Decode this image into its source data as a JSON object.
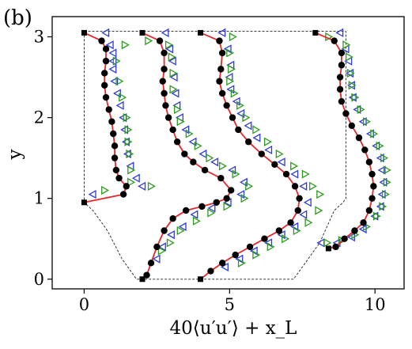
{
  "chart_data": {
    "type": "scatter",
    "panel_label": "(b)",
    "xlabel": "40⟨u′u′⟩ + x_L",
    "ylabel": "y",
    "xlim": [
      -1.1,
      11.0
    ],
    "ylim": [
      -0.12,
      3.25
    ],
    "x_ticks": [
      0,
      5,
      10
    ],
    "y_ticks": [
      0,
      1,
      2,
      3
    ],
    "grid": false,
    "colors": {
      "line": "#e8262a",
      "dots": "#000000",
      "triangle_left": "#2d3bdc",
      "triangle_right": "#2c9b1e",
      "boundary": "#222222"
    },
    "markers": [
      "black-dot",
      "blue-left-triangle",
      "green-right-triangle",
      "black-square"
    ],
    "series": [
      {
        "x_offset": 0,
        "profile": [
          [
            0,
            3.05
          ],
          [
            0.6,
            2.95
          ],
          [
            0.75,
            2.85
          ],
          [
            0.75,
            2.7
          ],
          [
            0.7,
            2.55
          ],
          [
            0.7,
            2.4
          ],
          [
            0.75,
            2.25
          ],
          [
            0.85,
            2.1
          ],
          [
            0.95,
            1.95
          ],
          [
            1.0,
            1.8
          ],
          [
            1.05,
            1.65
          ],
          [
            1.05,
            1.5
          ],
          [
            1.1,
            1.35
          ],
          [
            1.2,
            1.25
          ],
          [
            1.45,
            1.15
          ],
          [
            1.35,
            1.05
          ],
          [
            0,
            0.95
          ]
        ],
        "blue": [
          [
            0.75,
            3.05
          ],
          [
            0.9,
            2.9
          ],
          [
            1.0,
            2.8
          ],
          [
            1.0,
            2.7
          ],
          [
            1.0,
            2.6
          ],
          [
            1.05,
            2.45
          ],
          [
            1.15,
            2.3
          ],
          [
            1.25,
            2.15
          ],
          [
            1.35,
            2.0
          ],
          [
            1.4,
            1.85
          ],
          [
            1.45,
            1.7
          ],
          [
            1.5,
            1.55
          ],
          [
            1.6,
            1.4
          ],
          [
            1.8,
            1.25
          ],
          [
            2.0,
            1.15
          ],
          [
            0.3,
            1.05
          ]
        ],
        "green": [
          [
            1.4,
            2.9
          ],
          [
            1.1,
            2.7
          ],
          [
            1.2,
            2.45
          ],
          [
            1.3,
            2.25
          ],
          [
            1.45,
            2.0
          ],
          [
            1.5,
            1.85
          ],
          [
            1.5,
            1.7
          ],
          [
            1.55,
            1.55
          ],
          [
            1.6,
            1.35
          ],
          [
            1.6,
            1.2
          ],
          [
            2.3,
            1.15
          ],
          [
            0.7,
            1.1
          ]
        ]
      },
      {
        "x_offset": 2,
        "profile": [
          [
            2,
            3.05
          ],
          [
            2.6,
            2.95
          ],
          [
            2.75,
            2.8
          ],
          [
            2.75,
            2.6
          ],
          [
            2.7,
            2.45
          ],
          [
            2.75,
            2.3
          ],
          [
            2.8,
            2.15
          ],
          [
            2.9,
            2.0
          ],
          [
            3.05,
            1.85
          ],
          [
            3.2,
            1.7
          ],
          [
            3.45,
            1.55
          ],
          [
            3.75,
            1.45
          ],
          [
            4.15,
            1.35
          ],
          [
            4.7,
            1.25
          ],
          [
            5.05,
            1.1
          ],
          [
            4.9,
            1.0
          ],
          [
            4.55,
            0.95
          ],
          [
            4.05,
            0.9
          ],
          [
            3.5,
            0.85
          ],
          [
            3.05,
            0.75
          ],
          [
            2.75,
            0.6
          ],
          [
            2.5,
            0.4
          ],
          [
            2.3,
            0.2
          ],
          [
            2.15,
            0.05
          ],
          [
            2,
            0
          ]
        ],
        "blue": [
          [
            2.8,
            3.05
          ],
          [
            2.95,
            2.85
          ],
          [
            3.05,
            2.7
          ],
          [
            3.1,
            2.5
          ],
          [
            3.15,
            2.3
          ],
          [
            3.2,
            2.15
          ],
          [
            3.3,
            2.0
          ],
          [
            3.5,
            1.85
          ],
          [
            3.75,
            1.7
          ],
          [
            4.1,
            1.55
          ],
          [
            4.5,
            1.45
          ],
          [
            5.1,
            1.35
          ],
          [
            5.5,
            1.2
          ],
          [
            5.4,
            1.05
          ],
          [
            4.95,
            0.95
          ],
          [
            4.4,
            0.88
          ],
          [
            3.8,
            0.8
          ],
          [
            3.4,
            0.65
          ],
          [
            3.0,
            0.55
          ],
          [
            2.7,
            0.4
          ],
          [
            2.5,
            0.25
          ]
        ],
        "green": [
          [
            2.2,
            2.95
          ],
          [
            2.9,
            2.9
          ],
          [
            3.0,
            2.75
          ],
          [
            3.05,
            2.55
          ],
          [
            3.05,
            2.35
          ],
          [
            3.2,
            2.1
          ],
          [
            3.3,
            1.95
          ],
          [
            3.6,
            1.8
          ],
          [
            3.9,
            1.65
          ],
          [
            4.3,
            1.5
          ],
          [
            4.75,
            1.4
          ],
          [
            5.2,
            1.3
          ],
          [
            5.65,
            1.15
          ],
          [
            5.5,
            1.0
          ],
          [
            4.9,
            0.9
          ],
          [
            4.35,
            0.82
          ],
          [
            3.85,
            0.72
          ],
          [
            3.3,
            0.6
          ],
          [
            2.95,
            0.45
          ],
          [
            2.65,
            0.35
          ]
        ]
      },
      {
        "x_offset": 4,
        "profile": [
          [
            4,
            3.05
          ],
          [
            4.65,
            2.95
          ],
          [
            4.75,
            2.8
          ],
          [
            4.7,
            2.6
          ],
          [
            4.65,
            2.45
          ],
          [
            4.75,
            2.3
          ],
          [
            4.9,
            2.15
          ],
          [
            5.1,
            2.0
          ],
          [
            5.3,
            1.85
          ],
          [
            5.65,
            1.7
          ],
          [
            6.1,
            1.55
          ],
          [
            6.55,
            1.42
          ],
          [
            6.95,
            1.3
          ],
          [
            7.25,
            1.15
          ],
          [
            7.4,
            1.0
          ],
          [
            7.35,
            0.85
          ],
          [
            7.1,
            0.7
          ],
          [
            6.7,
            0.6
          ],
          [
            6.2,
            0.5
          ],
          [
            5.7,
            0.4
          ],
          [
            5.2,
            0.3
          ],
          [
            4.75,
            0.2
          ],
          [
            4.35,
            0.1
          ],
          [
            4,
            0
          ]
        ],
        "blue": [
          [
            4.75,
            3.05
          ],
          [
            4.95,
            2.85
          ],
          [
            5.05,
            2.65
          ],
          [
            5.0,
            2.5
          ],
          [
            5.05,
            2.35
          ],
          [
            5.25,
            2.2
          ],
          [
            5.4,
            2.05
          ],
          [
            5.65,
            1.9
          ],
          [
            5.95,
            1.75
          ],
          [
            6.35,
            1.6
          ],
          [
            6.8,
            1.45
          ],
          [
            7.25,
            1.3
          ],
          [
            7.55,
            1.15
          ],
          [
            7.7,
            0.95
          ],
          [
            7.55,
            0.8
          ],
          [
            7.25,
            0.65
          ],
          [
            6.8,
            0.55
          ],
          [
            6.35,
            0.45
          ],
          [
            5.85,
            0.35
          ],
          [
            5.35,
            0.25
          ],
          [
            4.85,
            0.15
          ]
        ],
        "green": [
          [
            5.1,
            3.0
          ],
          [
            5.0,
            2.8
          ],
          [
            5.05,
            2.6
          ],
          [
            5.0,
            2.45
          ],
          [
            5.15,
            2.3
          ],
          [
            5.35,
            2.15
          ],
          [
            5.55,
            2.0
          ],
          [
            5.9,
            1.85
          ],
          [
            6.3,
            1.7
          ],
          [
            6.7,
            1.55
          ],
          [
            7.2,
            1.4
          ],
          [
            7.6,
            1.3
          ],
          [
            7.85,
            1.15
          ],
          [
            8.1,
            1.05
          ],
          [
            8.05,
            0.85
          ],
          [
            7.7,
            0.7
          ],
          [
            7.3,
            0.6
          ],
          [
            6.9,
            0.5
          ],
          [
            6.4,
            0.4
          ],
          [
            5.9,
            0.3
          ],
          [
            5.4,
            0.2
          ]
        ]
      },
      {
        "x_offset": 8,
        "profile": [
          [
            7.95,
            3.05
          ],
          [
            8.6,
            2.95
          ],
          [
            8.85,
            2.8
          ],
          [
            8.85,
            2.65
          ],
          [
            8.8,
            2.5
          ],
          [
            8.8,
            2.35
          ],
          [
            8.85,
            2.2
          ],
          [
            9.0,
            2.05
          ],
          [
            9.2,
            1.9
          ],
          [
            9.45,
            1.75
          ],
          [
            9.65,
            1.6
          ],
          [
            9.8,
            1.45
          ],
          [
            9.9,
            1.3
          ],
          [
            9.95,
            1.15
          ],
          [
            9.9,
            1.0
          ],
          [
            9.8,
            0.85
          ],
          [
            9.6,
            0.7
          ],
          [
            9.3,
            0.6
          ],
          [
            8.95,
            0.5
          ],
          [
            8.65,
            0.4
          ],
          [
            8.4,
            0.38
          ]
        ],
        "blue": [
          [
            8.8,
            3.05
          ],
          [
            9.0,
            2.85
          ],
          [
            9.1,
            2.7
          ],
          [
            9.15,
            2.55
          ],
          [
            9.2,
            2.4
          ],
          [
            9.25,
            2.25
          ],
          [
            9.4,
            2.1
          ],
          [
            9.6,
            1.95
          ],
          [
            9.85,
            1.8
          ],
          [
            10.05,
            1.65
          ],
          [
            10.2,
            1.5
          ],
          [
            10.25,
            1.35
          ],
          [
            10.3,
            1.2
          ],
          [
            10.25,
            1.05
          ],
          [
            10.2,
            0.9
          ],
          [
            10.0,
            0.78
          ],
          [
            9.6,
            0.62
          ],
          [
            9.2,
            0.52
          ],
          [
            8.7,
            0.45
          ],
          [
            8.15,
            0.45
          ]
        ],
        "green": [
          [
            8.4,
            3.0
          ],
          [
            9.0,
            2.9
          ],
          [
            9.1,
            2.75
          ],
          [
            9.15,
            2.55
          ],
          [
            9.2,
            2.4
          ],
          [
            9.3,
            2.25
          ],
          [
            9.5,
            2.1
          ],
          [
            9.7,
            1.95
          ],
          [
            9.95,
            1.8
          ],
          [
            10.15,
            1.65
          ],
          [
            10.3,
            1.5
          ],
          [
            10.4,
            1.35
          ],
          [
            10.4,
            1.2
          ],
          [
            10.35,
            1.05
          ],
          [
            10.25,
            0.9
          ],
          [
            10.05,
            0.78
          ],
          [
            9.7,
            0.65
          ],
          [
            9.3,
            0.55
          ],
          [
            8.85,
            0.48
          ],
          [
            8.35,
            0.45
          ]
        ]
      }
    ],
    "boundary": {
      "top": [
        [
          0,
          3.07
        ],
        [
          9,
          3.07
        ]
      ],
      "left": [
        [
          0,
          3.07
        ],
        [
          0,
          0.95
        ],
        [
          0.3,
          0.85
        ],
        [
          0.8,
          0.6
        ],
        [
          1.3,
          0.25
        ],
        [
          1.8,
          0
        ],
        [
          7.2,
          0
        ],
        [
          7.6,
          0.2
        ],
        [
          8.1,
          0.45
        ],
        [
          8.6,
          0.85
        ],
        [
          8.9,
          0.95
        ],
        [
          9.0,
          1.0
        ],
        [
          9.0,
          3.07
        ]
      ]
    }
  }
}
